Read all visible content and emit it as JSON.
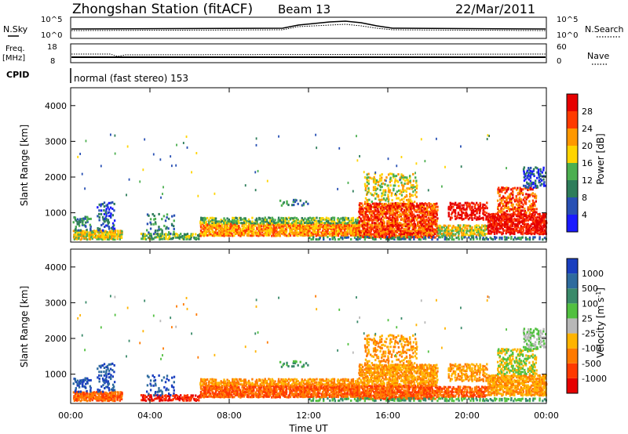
{
  "header": {
    "station": "Zhongshan Station (fitACF)",
    "beam": "Beam 13",
    "date": "22/Mar/2011"
  },
  "top_panels": {
    "nsky_label": "N.Sky",
    "nsearch_label": "N.Search",
    "nsky_ticks": [
      "10^5",
      "10^0"
    ],
    "nsearch_ticks": [
      "10^5",
      "10^0"
    ],
    "freq_label_1": "Freq.",
    "freq_label_2": "[MHz]",
    "freq_ticks": [
      "18",
      "8"
    ],
    "nave_label": "Nave",
    "nave_ticks": [
      "60",
      "0"
    ],
    "cpid_label": "CPID",
    "cpid_text": "normal (fast stereo) 153"
  },
  "chart_data": [
    {
      "type": "heatmap",
      "name": "power-panel",
      "ylabel": "Slant Range [km]",
      "ylim": [
        180,
        4500
      ],
      "yticks": [
        1000,
        2000,
        3000,
        4000
      ],
      "xlim": [
        0,
        24
      ],
      "colorbar": {
        "label": "Power [dB]",
        "ticks": [
          "4",
          "8",
          "12",
          "16",
          "20",
          "24",
          "28"
        ],
        "colors": [
          "#1a1aff",
          "#2850b4",
          "#2e7d5a",
          "#4caf50",
          "#ffd400",
          "#ff9800",
          "#ff3a00",
          "#e60000"
        ]
      }
    },
    {
      "type": "heatmap",
      "name": "velocity-panel",
      "ylabel": "Slant Range [km]",
      "ylim": [
        180,
        4500
      ],
      "yticks": [
        1000,
        2000,
        3000,
        4000
      ],
      "xlim": [
        0,
        24
      ],
      "xlabel": "Time UT",
      "xticks": [
        "00:00",
        "04:00",
        "08:00",
        "12:00",
        "16:00",
        "20:00",
        "00:00"
      ],
      "colorbar": {
        "label": "Velocity [m s^-1]",
        "ticks": [
          "1000",
          "500",
          "100",
          "25",
          "-25",
          "-100",
          "-500",
          "-1000"
        ],
        "colors": [
          "#1a3fbf",
          "#2e6b9e",
          "#3a8a6a",
          "#52c040",
          "#b8b8b8",
          "#ffb400",
          "#ff7a00",
          "#ff3a00",
          "#e60000"
        ]
      }
    }
  ]
}
